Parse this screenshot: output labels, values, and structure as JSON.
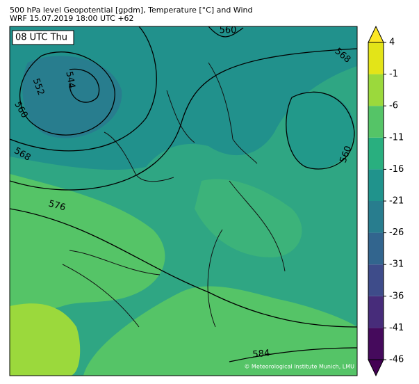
{
  "header": {
    "title": "500 hPa level Geopotential [gpdm], Temperature [°C] and Wind",
    "subtitle": "WRF 15.07.2019 18:00 UTC +62"
  },
  "map": {
    "time_label": "08 UTC Thu",
    "contour_labels": [
      560,
      568,
      544,
      552,
      560,
      568,
      576,
      560,
      584
    ],
    "credit": "© Meteorological Institute Munich, LMU"
  },
  "colorbar": {
    "ylim": [
      -46,
      4
    ],
    "ticks": [
      -46,
      -41,
      -36,
      -31,
      -26,
      -21,
      -16,
      -11,
      -6,
      -1,
      4
    ],
    "colors": [
      "#450a5c",
      "#472c7a",
      "#3e4c8a",
      "#32658e",
      "#287d8e",
      "#20938c",
      "#29af7f",
      "#55c467",
      "#9bd93c",
      "#e3e418"
    ],
    "under_color": "#440154",
    "over_color": "#fde725"
  }
}
